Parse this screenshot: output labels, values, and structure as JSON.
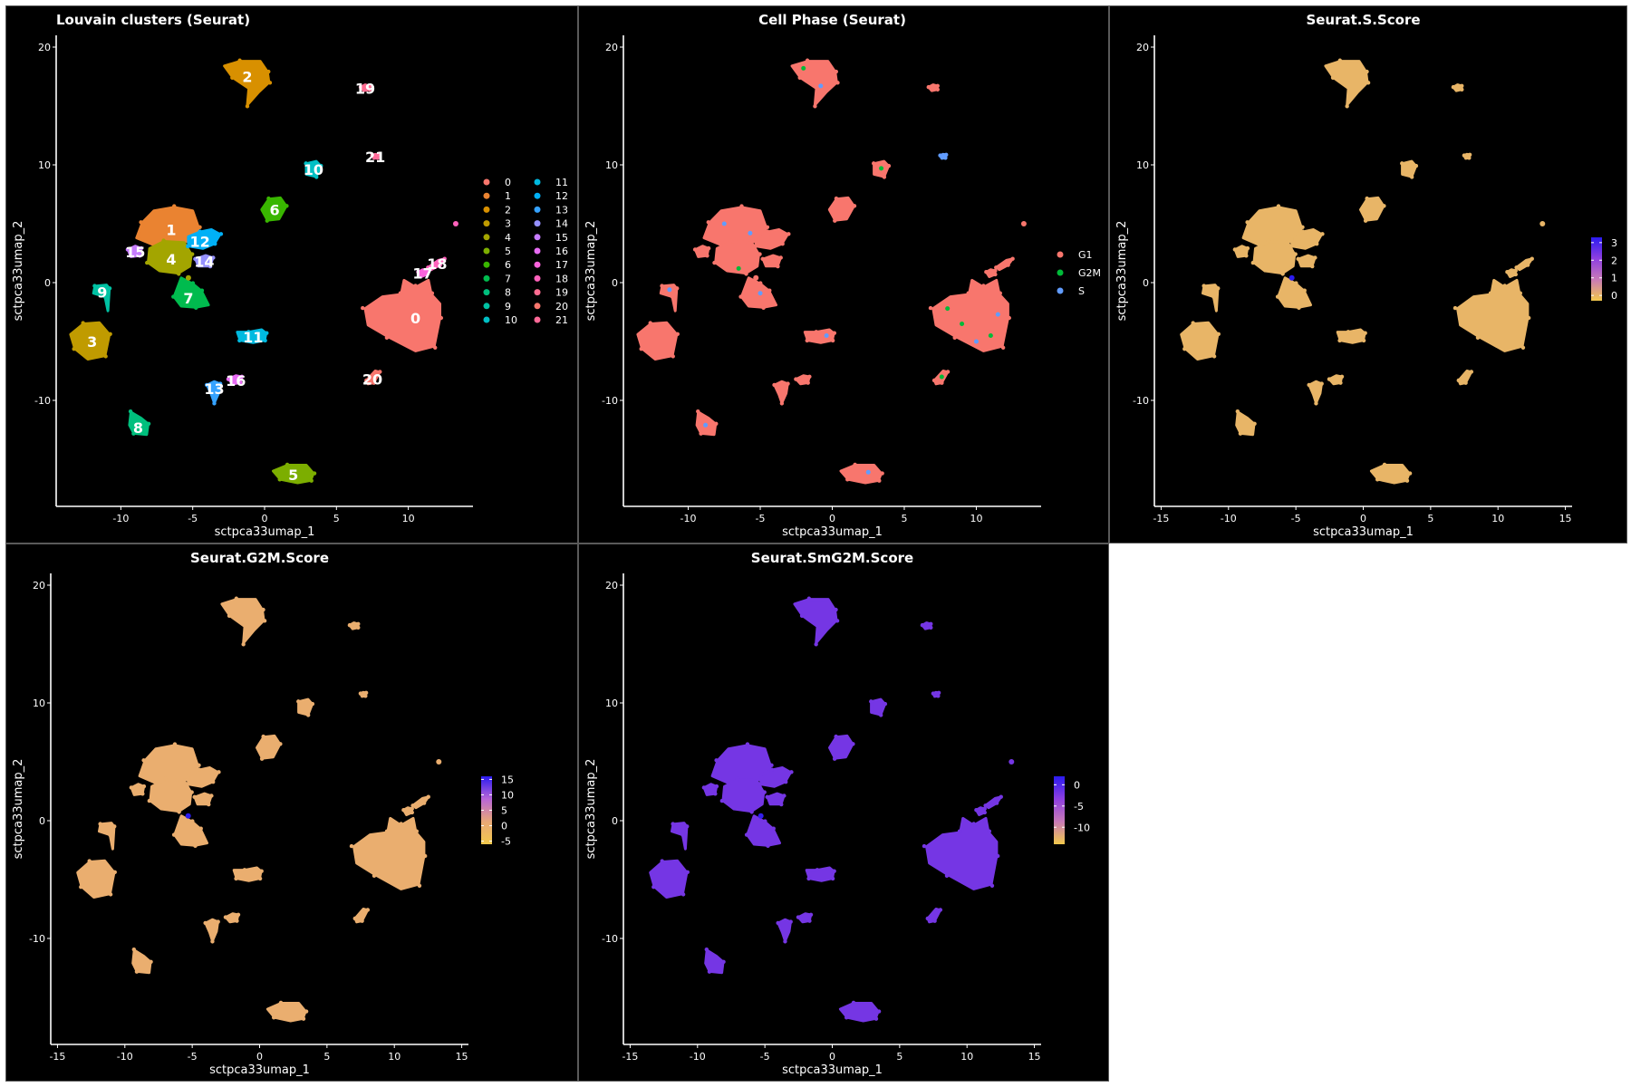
{
  "panels": [
    {
      "id": "clusters",
      "title": "Louvain clusters (Seurat)",
      "xlabel": "sctpca33umap_1",
      "ylabel": "sctpca33umap_2",
      "xlim": [
        -14.5,
        14.5
      ],
      "ylim": [
        -19,
        21
      ],
      "xticks": [
        -10,
        -5,
        0,
        5,
        10
      ],
      "yticks": [
        -10,
        0,
        10,
        20
      ],
      "legend": {
        "type": "discrete",
        "columns": 2,
        "entries": [
          {
            "label": "0",
            "color": "#F8766D"
          },
          {
            "label": "1",
            "color": "#EA8331"
          },
          {
            "label": "2",
            "color": "#D89000"
          },
          {
            "label": "3",
            "color": "#C09B00"
          },
          {
            "label": "4",
            "color": "#A3A500"
          },
          {
            "label": "5",
            "color": "#7CAE00"
          },
          {
            "label": "6",
            "color": "#39B600"
          },
          {
            "label": "7",
            "color": "#00BB4E"
          },
          {
            "label": "8",
            "color": "#00BF7D"
          },
          {
            "label": "9",
            "color": "#00C1A3"
          },
          {
            "label": "10",
            "color": "#00BFC4"
          },
          {
            "label": "11",
            "color": "#00BAE0"
          },
          {
            "label": "12",
            "color": "#00B0F6"
          },
          {
            "label": "13",
            "color": "#35A2FF"
          },
          {
            "label": "14",
            "color": "#9590FF"
          },
          {
            "label": "15",
            "color": "#C77CFF"
          },
          {
            "label": "16",
            "color": "#E76BF3"
          },
          {
            "label": "17",
            "color": "#FA62DB"
          },
          {
            "label": "18",
            "color": "#FF62BC"
          },
          {
            "label": "19",
            "color": "#FF6C91"
          },
          {
            "label": "20",
            "color": "#F8766D"
          },
          {
            "label": "21",
            "color": "#FF6A98"
          }
        ]
      }
    },
    {
      "id": "phase",
      "title": "Cell Phase (Seurat)",
      "xlabel": "sctpca33umap_1",
      "ylabel": "sctpca33umap_2",
      "xlim": [
        -14.5,
        14.5
      ],
      "ylim": [
        -19,
        21
      ],
      "xticks": [
        -10,
        -5,
        0,
        5,
        10
      ],
      "yticks": [
        -10,
        0,
        10,
        20
      ],
      "legend": {
        "type": "discrete",
        "columns": 1,
        "entries": [
          {
            "label": "G1",
            "color": "#F8766D"
          },
          {
            "label": "G2M",
            "color": "#00BA38"
          },
          {
            "label": "S",
            "color": "#619CFF"
          }
        ]
      }
    },
    {
      "id": "sscore",
      "title": "Seurat.S.Score",
      "xlabel": "sctpca33umap_1",
      "ylabel": "sctpca33umap_2",
      "xlim": [
        -15.5,
        15.5
      ],
      "ylim": [
        -19,
        21
      ],
      "xticks": [
        -15,
        -10,
        -5,
        0,
        5,
        10,
        15
      ],
      "yticks": [
        -10,
        0,
        10,
        20
      ],
      "legend": {
        "type": "continuous",
        "range": [
          -0.3,
          3.3
        ],
        "ticks": [
          "0",
          "1",
          "2",
          "3"
        ],
        "tick_values": [
          0,
          1,
          2,
          3
        ],
        "colors": [
          "#F2C94C",
          "#C87AB7",
          "#8E3FE0",
          "#2B1BF0"
        ]
      }
    },
    {
      "id": "g2mscore",
      "title": "Seurat.G2M.Score",
      "xlabel": "sctpca33umap_1",
      "ylabel": "sctpca33umap_2",
      "xlim": [
        -15.5,
        15.5
      ],
      "ylim": [
        -19,
        21
      ],
      "xticks": [
        -15,
        -10,
        -5,
        0,
        5,
        10,
        15
      ],
      "yticks": [
        -10,
        0,
        10,
        20
      ],
      "legend": {
        "type": "continuous",
        "range": [
          -6,
          16
        ],
        "ticks": [
          "-5",
          "0",
          "5",
          "10",
          "15"
        ],
        "tick_values": [
          -5,
          0,
          5,
          10,
          15
        ],
        "colors": [
          "#F2C94C",
          "#E8A877",
          "#B866D8",
          "#2B1BF0"
        ]
      }
    },
    {
      "id": "smg2mscore",
      "title": "Seurat.SmG2M.Score",
      "xlabel": "sctpca33umap_1",
      "ylabel": "sctpca33umap_2",
      "xlim": [
        -15.5,
        15.5
      ],
      "ylim": [
        -19,
        21
      ],
      "xticks": [
        -15,
        -10,
        -5,
        0,
        5,
        10,
        15
      ],
      "yticks": [
        -10,
        0,
        10,
        20
      ],
      "legend": {
        "type": "continuous",
        "range": [
          -14,
          2
        ],
        "ticks": [
          "-10",
          "-5",
          "0"
        ],
        "tick_values": [
          -10,
          -5,
          0
        ],
        "colors": [
          "#F2C94C",
          "#C87AB7",
          "#8E3FE0",
          "#2B1BF0"
        ]
      }
    }
  ],
  "chart_data": {
    "type": "scatter",
    "point_value_fields": [
      "phase",
      "s_score",
      "g2m_score",
      "smg2m_score"
    ],
    "clusters": [
      {
        "id": "0",
        "x": 10.5,
        "y": -3.0,
        "phase": "G1",
        "s_score": 0,
        "g2m_score": 0,
        "smg2m_score": -2
      },
      {
        "id": "1",
        "x": -6.5,
        "y": 4.5,
        "phase": "G1",
        "s_score": 0,
        "g2m_score": 0,
        "smg2m_score": -2
      },
      {
        "id": "2",
        "x": -1.2,
        "y": 17.5,
        "phase": "G1",
        "s_score": 0,
        "g2m_score": 0,
        "smg2m_score": -2
      },
      {
        "id": "3",
        "x": -12.0,
        "y": -5.0,
        "phase": "G1",
        "s_score": 0,
        "g2m_score": 0,
        "smg2m_score": -2
      },
      {
        "id": "4",
        "x": -6.5,
        "y": 2.0,
        "phase": "G1",
        "s_score": 0,
        "g2m_score": 0,
        "smg2m_score": -2
      },
      {
        "id": "5",
        "x": 2.0,
        "y": -16.3,
        "phase": "G1",
        "s_score": 0,
        "g2m_score": 0,
        "smg2m_score": -2
      },
      {
        "id": "6",
        "x": 0.7,
        "y": 6.2,
        "phase": "G1",
        "s_score": 0,
        "g2m_score": 0,
        "smg2m_score": -2
      },
      {
        "id": "7",
        "x": -5.3,
        "y": -1.3,
        "phase": "G1",
        "s_score": 0,
        "g2m_score": 0,
        "smg2m_score": -2
      },
      {
        "id": "8",
        "x": -8.8,
        "y": -12.3,
        "phase": "G1",
        "s_score": 0,
        "g2m_score": 0,
        "smg2m_score": -2
      },
      {
        "id": "9",
        "x": -11.3,
        "y": -0.8,
        "phase": "G1",
        "s_score": 0,
        "g2m_score": 0,
        "smg2m_score": -2
      },
      {
        "id": "10",
        "x": 3.4,
        "y": 9.6,
        "phase": "G1",
        "s_score": 0,
        "g2m_score": 0,
        "smg2m_score": -2
      },
      {
        "id": "11",
        "x": -0.8,
        "y": -4.6,
        "phase": "G1",
        "s_score": 0,
        "g2m_score": 0,
        "smg2m_score": -2
      },
      {
        "id": "12",
        "x": -4.5,
        "y": 3.5,
        "phase": "G1",
        "s_score": 0,
        "g2m_score": 0,
        "smg2m_score": -2
      },
      {
        "id": "13",
        "x": -3.5,
        "y": -9.0,
        "phase": "G1",
        "s_score": 0,
        "g2m_score": 0,
        "smg2m_score": -2
      },
      {
        "id": "14",
        "x": -4.2,
        "y": 1.8,
        "phase": "G1",
        "s_score": 0,
        "g2m_score": 0,
        "smg2m_score": -2
      },
      {
        "id": "15",
        "x": -9.0,
        "y": 2.6,
        "phase": "G1",
        "s_score": 0,
        "g2m_score": 0,
        "smg2m_score": -2
      },
      {
        "id": "16",
        "x": -2.0,
        "y": -8.3,
        "phase": "G1",
        "s_score": 0,
        "g2m_score": 0,
        "smg2m_score": -2
      },
      {
        "id": "17",
        "x": 11.0,
        "y": 0.8,
        "phase": "G1",
        "s_score": 0,
        "g2m_score": 0,
        "smg2m_score": -2
      },
      {
        "id": "18",
        "x": 12.0,
        "y": 1.6,
        "phase": "G1",
        "s_score": 0,
        "g2m_score": 0,
        "smg2m_score": -2
      },
      {
        "id": "19",
        "x": 7.0,
        "y": 16.5,
        "phase": "G1",
        "s_score": 0,
        "g2m_score": 0,
        "smg2m_score": -2
      },
      {
        "id": "20",
        "x": 7.5,
        "y": -8.2,
        "phase": "G1",
        "s_score": 0,
        "g2m_score": 0,
        "smg2m_score": -2
      },
      {
        "id": "21",
        "x": 7.7,
        "y": 10.7,
        "phase": "S",
        "s_score": 0,
        "g2m_score": 0,
        "smg2m_score": -2
      }
    ],
    "outlier_points": [
      {
        "x": 13.3,
        "y": 5.0,
        "cluster": "18",
        "s_score": 0,
        "g2m_score": 0
      },
      {
        "x": -5.3,
        "y": 0.4,
        "cluster": "4",
        "s_score": 3.3,
        "g2m_score": 16
      }
    ]
  }
}
